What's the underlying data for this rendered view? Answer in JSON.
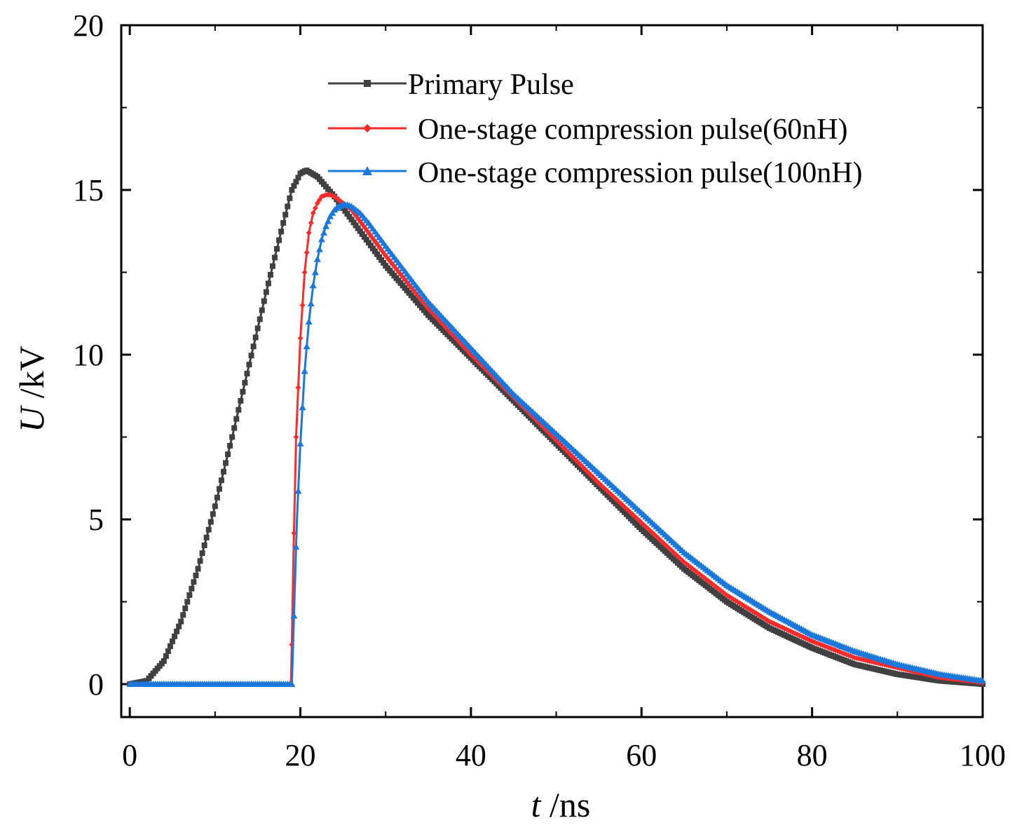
{
  "chart_data": {
    "type": "line",
    "title": "",
    "xlabel": {
      "var": "t",
      "unit": " /ns"
    },
    "ylabel": {
      "var": "U",
      "unit": " /kV"
    },
    "xlim": [
      -1,
      100
    ],
    "ylim": [
      -1,
      20
    ],
    "xticks": [
      0,
      20,
      40,
      60,
      80,
      100
    ],
    "yticks": [
      0,
      5,
      10,
      15,
      20
    ],
    "grid": false,
    "legend_position": "top-right",
    "series": [
      {
        "name": "Primary Pulse",
        "color": "#404040",
        "marker": "square",
        "x": [
          0,
          2,
          4,
          6,
          8,
          10,
          12,
          14,
          16,
          18,
          19,
          20,
          20.7,
          22,
          24,
          26,
          28,
          30,
          35,
          40,
          45,
          50,
          55,
          60,
          65,
          70,
          75,
          80,
          85,
          90,
          95,
          100
        ],
        "y": [
          0,
          0.1,
          0.7,
          1.9,
          3.5,
          5.4,
          7.5,
          9.7,
          11.9,
          14.0,
          15.0,
          15.5,
          15.6,
          15.4,
          14.8,
          14.1,
          13.4,
          12.7,
          11.2,
          9.9,
          8.6,
          7.3,
          6.0,
          4.7,
          3.5,
          2.5,
          1.7,
          1.1,
          0.6,
          0.3,
          0.1,
          0
        ]
      },
      {
        "name": "One-stage compression pulse(60nH)",
        "color": "#ff2a2a",
        "marker": "diamond",
        "x": [
          0,
          18.9,
          19.0,
          19.2,
          19.5,
          20.0,
          20.5,
          21.0,
          21.5,
          22.0,
          22.5,
          23.0,
          23.5,
          24.0,
          25,
          26,
          28,
          30,
          35,
          40,
          45,
          50,
          55,
          60,
          65,
          70,
          75,
          80,
          85,
          90,
          95,
          100
        ],
        "y": [
          0,
          0,
          1.2,
          4.0,
          7.5,
          10.5,
          12.5,
          13.7,
          14.3,
          14.6,
          14.8,
          14.85,
          14.85,
          14.8,
          14.6,
          14.4,
          13.7,
          13.0,
          11.4,
          10.0,
          8.7,
          7.4,
          6.1,
          4.9,
          3.7,
          2.7,
          1.9,
          1.3,
          0.8,
          0.5,
          0.2,
          0.05
        ]
      },
      {
        "name": "One-stage compression pulse(100nH)",
        "color": "#1a78dc",
        "marker": "triangle",
        "x": [
          0,
          19.0,
          19.1,
          19.3,
          19.6,
          20.0,
          20.5,
          21.0,
          21.5,
          22.0,
          22.5,
          23.0,
          23.5,
          24.0,
          24.5,
          25.0,
          25.5,
          26.0,
          27,
          28,
          30,
          35,
          40,
          45,
          50,
          55,
          60,
          65,
          70,
          75,
          80,
          85,
          90,
          95,
          100
        ],
        "y": [
          0,
          0,
          0.8,
          2.5,
          5.0,
          7.3,
          9.5,
          11.0,
          12.1,
          12.9,
          13.5,
          13.9,
          14.2,
          14.4,
          14.5,
          14.55,
          14.55,
          14.5,
          14.3,
          14.0,
          13.3,
          11.6,
          10.2,
          8.8,
          7.6,
          6.4,
          5.2,
          4.0,
          3.0,
          2.2,
          1.5,
          1.0,
          0.6,
          0.3,
          0.1
        ]
      }
    ]
  }
}
